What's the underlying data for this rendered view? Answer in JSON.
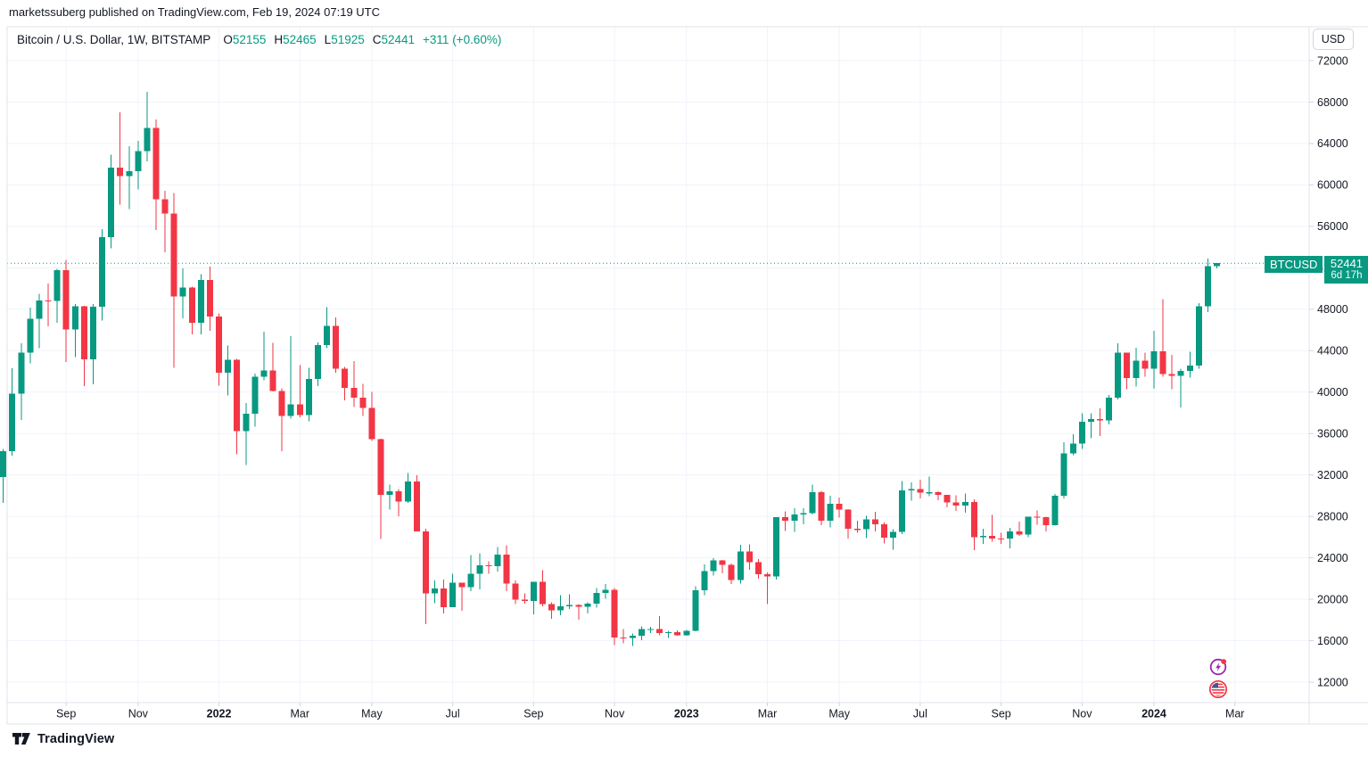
{
  "attribution": "marketssuberg published on TradingView.com, Feb 19, 2024 07:19 UTC",
  "header": {
    "symbol_title": "Bitcoin / U.S. Dollar, 1W, BITSTAMP",
    "ohlc": [
      {
        "label": "O",
        "value": "52155"
      },
      {
        "label": "H",
        "value": "52465"
      },
      {
        "label": "L",
        "value": "51925"
      },
      {
        "label": "C",
        "value": "52441"
      }
    ],
    "change": "+311 (+0.60%)"
  },
  "price_axis": {
    "currency_button": "USD",
    "ticks": [
      72000,
      68000,
      64000,
      60000,
      56000,
      52000,
      48000,
      44000,
      40000,
      36000,
      32000,
      28000,
      24000,
      20000,
      16000,
      12000
    ]
  },
  "time_axis": {
    "ticks": [
      {
        "label": "Sep",
        "index": 7,
        "bold": false
      },
      {
        "label": "Nov",
        "index": 15,
        "bold": false
      },
      {
        "label": "2022",
        "index": 24,
        "bold": true
      },
      {
        "label": "Mar",
        "index": 33,
        "bold": false
      },
      {
        "label": "May",
        "index": 41,
        "bold": false
      },
      {
        "label": "Jul",
        "index": 50,
        "bold": false
      },
      {
        "label": "Sep",
        "index": 59,
        "bold": false
      },
      {
        "label": "Nov",
        "index": 68,
        "bold": false
      },
      {
        "label": "2023",
        "index": 76,
        "bold": true
      },
      {
        "label": "Mar",
        "index": 85,
        "bold": false
      },
      {
        "label": "May",
        "index": 93,
        "bold": false
      },
      {
        "label": "Jul",
        "index": 102,
        "bold": false
      },
      {
        "label": "Sep",
        "index": 111,
        "bold": false
      },
      {
        "label": "Nov",
        "index": 120,
        "bold": false
      },
      {
        "label": "2024",
        "index": 128,
        "bold": true
      },
      {
        "label": "Mar",
        "index": 137,
        "bold": false
      }
    ]
  },
  "price_label": {
    "symbol": "BTCUSD",
    "price": "52441",
    "countdown": "6d 17h"
  },
  "footer": {
    "logo_text": "TradingView"
  },
  "colors": {
    "up": "#089981",
    "down": "#F23645",
    "grid": "#f0f3fa",
    "frame": "#e0e3eb",
    "tick": "#d1d4dc",
    "axis_text": "#131722",
    "current_price_line": "#089981",
    "price_label_bg": "#089981",
    "event_purple": "#9C27B0",
    "event_red": "#F23645"
  },
  "chart_data": {
    "type": "candlestick",
    "title": "Bitcoin / U.S. Dollar",
    "symbol": "BTCUSD",
    "exchange": "BITSTAMP",
    "interval": "1W",
    "currency": "USD",
    "current_price": 52441,
    "countdown": "6d 17h",
    "ylim": [
      10000,
      73500
    ],
    "y_gridlines_every": 4000,
    "columns": [
      "week_start",
      "open",
      "high",
      "low",
      "close"
    ],
    "candles": [
      [
        "2021-07-19",
        31780,
        34500,
        29296,
        34280
      ],
      [
        "2021-07-26",
        34280,
        42300,
        33850,
        39870
      ],
      [
        "2021-08-02",
        39870,
        44720,
        37330,
        43790
      ],
      [
        "2021-08-09",
        43790,
        48150,
        42780,
        47090
      ],
      [
        "2021-08-16",
        47090,
        49500,
        44220,
        48850
      ],
      [
        "2021-08-23",
        48850,
        50500,
        46350,
        48800
      ],
      [
        "2021-08-30",
        48800,
        51900,
        46700,
        51780
      ],
      [
        "2021-09-06",
        51780,
        52780,
        42900,
        46050
      ],
      [
        "2021-09-13",
        46050,
        48500,
        43380,
        48300
      ],
      [
        "2021-09-20",
        48300,
        48340,
        40560,
        43170
      ],
      [
        "2021-09-27",
        43170,
        48500,
        40750,
        48240
      ],
      [
        "2021-10-04",
        48240,
        55750,
        46920,
        54960
      ],
      [
        "2021-10-11",
        54960,
        62930,
        53880,
        61690
      ],
      [
        "2021-10-18",
        61690,
        67000,
        58100,
        60860
      ],
      [
        "2021-10-25",
        60860,
        63720,
        57650,
        61320
      ],
      [
        "2021-11-01",
        61320,
        64270,
        59580,
        63280
      ],
      [
        "2021-11-08",
        63280,
        69000,
        62280,
        65500
      ],
      [
        "2021-11-15",
        65500,
        66340,
        55630,
        58620
      ],
      [
        "2021-11-22",
        58620,
        59440,
        53500,
        57250
      ],
      [
        "2021-11-29",
        57250,
        59200,
        42330,
        49250
      ],
      [
        "2021-12-06",
        49250,
        51940,
        47130,
        50080
      ],
      [
        "2021-12-13",
        50080,
        50200,
        45560,
        46700
      ],
      [
        "2021-12-20",
        46700,
        51380,
        45580,
        50820
      ],
      [
        "2021-12-27",
        50820,
        52100,
        45900,
        47300
      ],
      [
        "2022-01-03",
        47300,
        47580,
        40610,
        41880
      ],
      [
        "2022-01-10",
        41880,
        44480,
        39660,
        43100
      ],
      [
        "2022-01-17",
        43100,
        43190,
        34000,
        36240
      ],
      [
        "2022-01-24",
        36240,
        38950,
        32950,
        37920
      ],
      [
        "2022-01-31",
        37920,
        41790,
        36680,
        41500
      ],
      [
        "2022-02-07",
        41500,
        45850,
        41130,
        42080
      ],
      [
        "2022-02-14",
        42080,
        44760,
        40070,
        40100
      ],
      [
        "2022-02-21",
        40100,
        40350,
        34300,
        37710
      ],
      [
        "2022-02-28",
        37710,
        45400,
        37460,
        38810
      ],
      [
        "2022-03-07",
        38810,
        42590,
        37570,
        37790
      ],
      [
        "2022-03-14",
        37790,
        42330,
        37160,
        41280
      ],
      [
        "2022-03-21",
        41280,
        44800,
        40570,
        44540
      ],
      [
        "2022-03-28",
        44540,
        48190,
        44240,
        46410
      ],
      [
        "2022-04-04",
        46410,
        47190,
        41860,
        42280
      ],
      [
        "2022-04-11",
        42280,
        42420,
        39200,
        40390
      ],
      [
        "2022-04-18",
        40390,
        42970,
        38540,
        39450
      ],
      [
        "2022-04-25",
        39450,
        40800,
        37700,
        38470
      ],
      [
        "2022-05-02",
        38470,
        40020,
        35280,
        35470
      ],
      [
        "2022-05-09",
        35470,
        35500,
        25800,
        30080
      ],
      [
        "2022-05-16",
        30080,
        31080,
        28650,
        30430
      ],
      [
        "2022-05-23",
        30430,
        30650,
        28020,
        29450
      ],
      [
        "2022-05-30",
        29450,
        32200,
        29300,
        31370
      ],
      [
        "2022-06-06",
        31370,
        31980,
        26700,
        26570
      ],
      [
        "2022-06-13",
        26570,
        26800,
        17600,
        20550
      ],
      [
        "2022-06-20",
        20550,
        21800,
        19640,
        21030
      ],
      [
        "2022-06-27",
        21030,
        21880,
        18620,
        19240
      ],
      [
        "2022-07-04",
        19240,
        22450,
        19240,
        21590
      ],
      [
        "2022-07-11",
        21590,
        21600,
        18910,
        21190
      ],
      [
        "2022-07-18",
        21190,
        24280,
        20780,
        22460
      ],
      [
        "2022-07-25",
        22460,
        24440,
        20970,
        23290
      ],
      [
        "2022-08-01",
        23290,
        23650,
        22440,
        23180
      ],
      [
        "2022-08-08",
        23180,
        25050,
        22660,
        24300
      ],
      [
        "2022-08-15",
        24300,
        25200,
        20780,
        21520
      ],
      [
        "2022-08-22",
        21520,
        21800,
        19540,
        19970
      ],
      [
        "2022-08-29",
        19970,
        20550,
        19560,
        19830
      ],
      [
        "2022-09-05",
        19830,
        21650,
        18530,
        21680
      ],
      [
        "2022-09-12",
        21680,
        22800,
        19330,
        19540
      ],
      [
        "2022-09-19",
        19540,
        19690,
        18130,
        18930
      ],
      [
        "2022-09-26",
        18930,
        20380,
        18470,
        19310
      ],
      [
        "2022-10-03",
        19310,
        20480,
        19070,
        19440
      ],
      [
        "2022-10-10",
        19440,
        19530,
        18020,
        19270
      ],
      [
        "2022-10-17",
        19270,
        19700,
        18650,
        19570
      ],
      [
        "2022-10-24",
        19570,
        21080,
        19170,
        20630
      ],
      [
        "2022-10-31",
        20630,
        21480,
        20060,
        20920
      ],
      [
        "2022-11-07",
        20920,
        21070,
        15590,
        16320
      ],
      [
        "2022-11-14",
        16320,
        17130,
        15750,
        16280
      ],
      [
        "2022-11-21",
        16280,
        16700,
        15480,
        16460
      ],
      [
        "2022-11-28",
        16460,
        17400,
        16060,
        17110
      ],
      [
        "2022-12-05",
        17110,
        17350,
        16730,
        17130
      ],
      [
        "2022-12-12",
        17130,
        18380,
        16530,
        16750
      ],
      [
        "2022-12-19",
        16750,
        16950,
        16280,
        16840
      ],
      [
        "2022-12-26",
        16840,
        16980,
        16490,
        16540
      ],
      [
        "2023-01-02",
        16540,
        17040,
        16490,
        16950
      ],
      [
        "2023-01-09",
        16950,
        21250,
        16920,
        20880
      ],
      [
        "2023-01-16",
        20880,
        23350,
        20400,
        22710
      ],
      [
        "2023-01-23",
        22710,
        23950,
        22300,
        23750
      ],
      [
        "2023-01-30",
        23750,
        23800,
        22500,
        23330
      ],
      [
        "2023-02-06",
        23330,
        23450,
        21450,
        21860
      ],
      [
        "2023-02-13",
        21860,
        25250,
        21530,
        24630
      ],
      [
        "2023-02-20",
        24630,
        25300,
        22850,
        23560
      ],
      [
        "2023-02-27",
        23560,
        23900,
        22000,
        22430
      ],
      [
        "2023-03-06",
        22430,
        22600,
        19550,
        22220
      ],
      [
        "2023-03-13",
        22220,
        27750,
        21900,
        27920
      ],
      [
        "2023-03-20",
        27920,
        28470,
        26600,
        27600
      ],
      [
        "2023-03-27",
        27600,
        28800,
        26510,
        28200
      ],
      [
        "2023-04-03",
        28200,
        28800,
        27250,
        28330
      ],
      [
        "2023-04-10",
        28330,
        31050,
        28170,
        30320
      ],
      [
        "2023-04-17",
        30320,
        30480,
        27150,
        27600
      ],
      [
        "2023-04-24",
        27600,
        29980,
        26940,
        29230
      ],
      [
        "2023-05-01",
        29230,
        29840,
        27900,
        28640
      ],
      [
        "2023-05-08",
        28640,
        28700,
        25850,
        26800
      ],
      [
        "2023-05-15",
        26800,
        27600,
        26400,
        26750
      ],
      [
        "2023-05-22",
        26750,
        28050,
        25900,
        27700
      ],
      [
        "2023-05-29",
        27700,
        28450,
        26570,
        27250
      ],
      [
        "2023-06-05",
        27250,
        27400,
        25400,
        25930
      ],
      [
        "2023-06-12",
        25930,
        26770,
        24800,
        26510
      ],
      [
        "2023-06-19",
        26510,
        31400,
        26300,
        30530
      ],
      [
        "2023-06-26",
        30530,
        31280,
        29500,
        30620
      ],
      [
        "2023-07-03",
        30620,
        31550,
        29730,
        30290
      ],
      [
        "2023-07-10",
        30290,
        31850,
        29950,
        30330
      ],
      [
        "2023-07-17",
        30330,
        30430,
        29560,
        30080
      ],
      [
        "2023-07-24",
        30080,
        30100,
        28860,
        29360
      ],
      [
        "2023-07-31",
        29360,
        30050,
        28550,
        29050
      ],
      [
        "2023-08-07",
        29050,
        30190,
        28350,
        29400
      ],
      [
        "2023-08-14",
        29400,
        29640,
        24750,
        26000
      ],
      [
        "2023-08-21",
        26000,
        26800,
        25350,
        26100
      ],
      [
        "2023-08-28",
        26100,
        28140,
        25550,
        25870
      ],
      [
        "2023-09-04",
        25870,
        26400,
        25350,
        25840
      ],
      [
        "2023-09-11",
        25840,
        26880,
        24900,
        26530
      ],
      [
        "2023-09-18",
        26530,
        27480,
        26100,
        26250
      ],
      [
        "2023-09-25",
        26250,
        27100,
        25990,
        27970
      ],
      [
        "2023-10-02",
        27970,
        28580,
        27200,
        27920
      ],
      [
        "2023-10-09",
        27920,
        27990,
        26540,
        27160
      ],
      [
        "2023-10-16",
        27160,
        30180,
        27100,
        29990
      ],
      [
        "2023-10-23",
        29990,
        35150,
        29740,
        34090
      ],
      [
        "2023-10-30",
        34090,
        35950,
        33900,
        35050
      ],
      [
        "2023-11-06",
        35050,
        37970,
        34500,
        37140
      ],
      [
        "2023-11-13",
        37140,
        37960,
        35550,
        37390
      ],
      [
        "2023-11-20",
        37390,
        38450,
        35750,
        37250
      ],
      [
        "2023-11-27",
        37250,
        39700,
        36870,
        39460
      ],
      [
        "2023-12-04",
        39460,
        44700,
        39280,
        43790
      ],
      [
        "2023-12-11",
        43790,
        43810,
        40300,
        41370
      ],
      [
        "2023-12-18",
        41370,
        44280,
        40550,
        43030
      ],
      [
        "2023-12-25",
        43030,
        43800,
        41470,
        42280
      ],
      [
        "2024-01-01",
        42280,
        45920,
        40340,
        43950
      ],
      [
        "2024-01-08",
        43950,
        48970,
        41500,
        41730
      ],
      [
        "2024-01-15",
        41730,
        43580,
        40280,
        41580
      ],
      [
        "2024-01-22",
        41580,
        42250,
        38500,
        42030
      ],
      [
        "2024-01-29",
        42030,
        43900,
        41420,
        42580
      ],
      [
        "2024-02-05",
        42580,
        48590,
        42270,
        48290
      ],
      [
        "2024-02-12",
        48290,
        52880,
        47710,
        52155
      ],
      [
        "2024-02-19",
        52155,
        52465,
        51925,
        52441
      ]
    ]
  }
}
